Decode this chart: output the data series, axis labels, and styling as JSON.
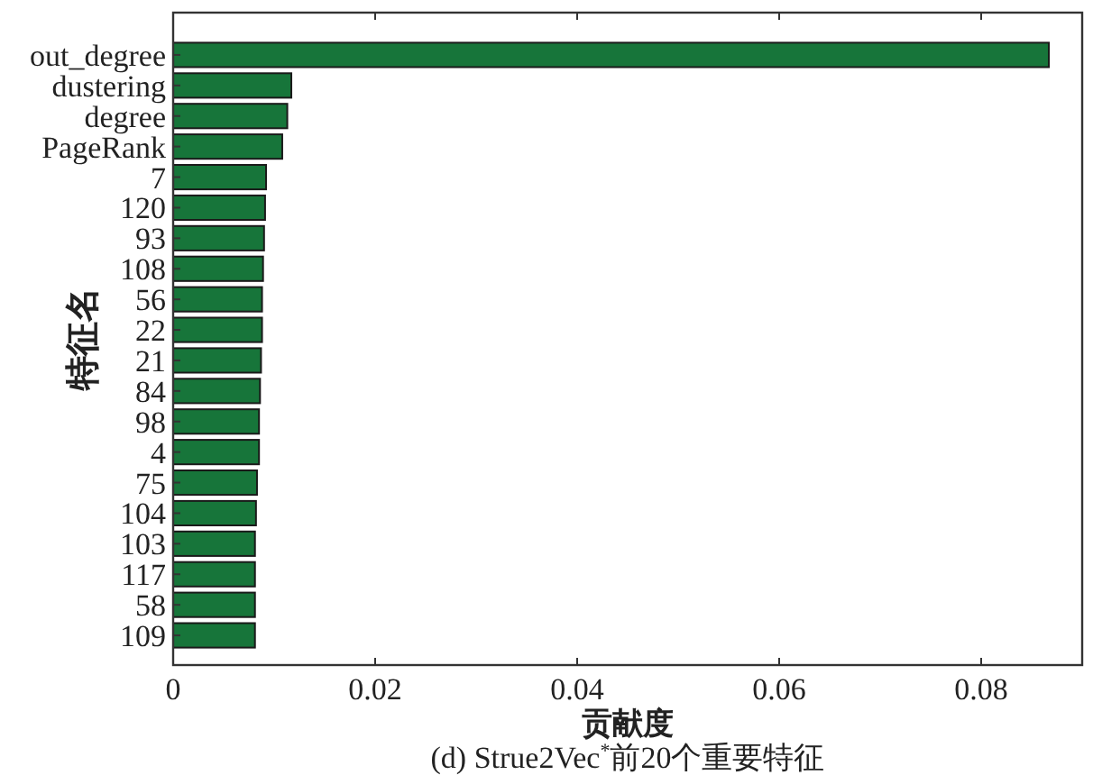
{
  "chart_data": {
    "type": "bar",
    "orientation": "horizontal",
    "title": "(d) Strue2Vec$^{*}$前20个重要特征",
    "xlabel": "贡献度",
    "ylabel": "特征名",
    "categories": [
      "out_degree",
      "dustering",
      "degree",
      "PageRank",
      "7",
      "120",
      "93",
      "108",
      "56",
      "22",
      "21",
      "84",
      "98",
      "4",
      "75",
      "104",
      "103",
      "117",
      "58",
      "109"
    ],
    "values": [
      0.0867,
      0.0117,
      0.0113,
      0.0108,
      0.0092,
      0.0091,
      0.009,
      0.0089,
      0.0088,
      0.0088,
      0.0087,
      0.0086,
      0.0085,
      0.0085,
      0.0083,
      0.0082,
      0.0081,
      0.0081,
      0.0081,
      0.0081
    ],
    "color": "#17753a",
    "xlim": [
      0,
      0.09
    ],
    "xticks": [
      0,
      0.02,
      0.04,
      0.06,
      0.08
    ]
  }
}
